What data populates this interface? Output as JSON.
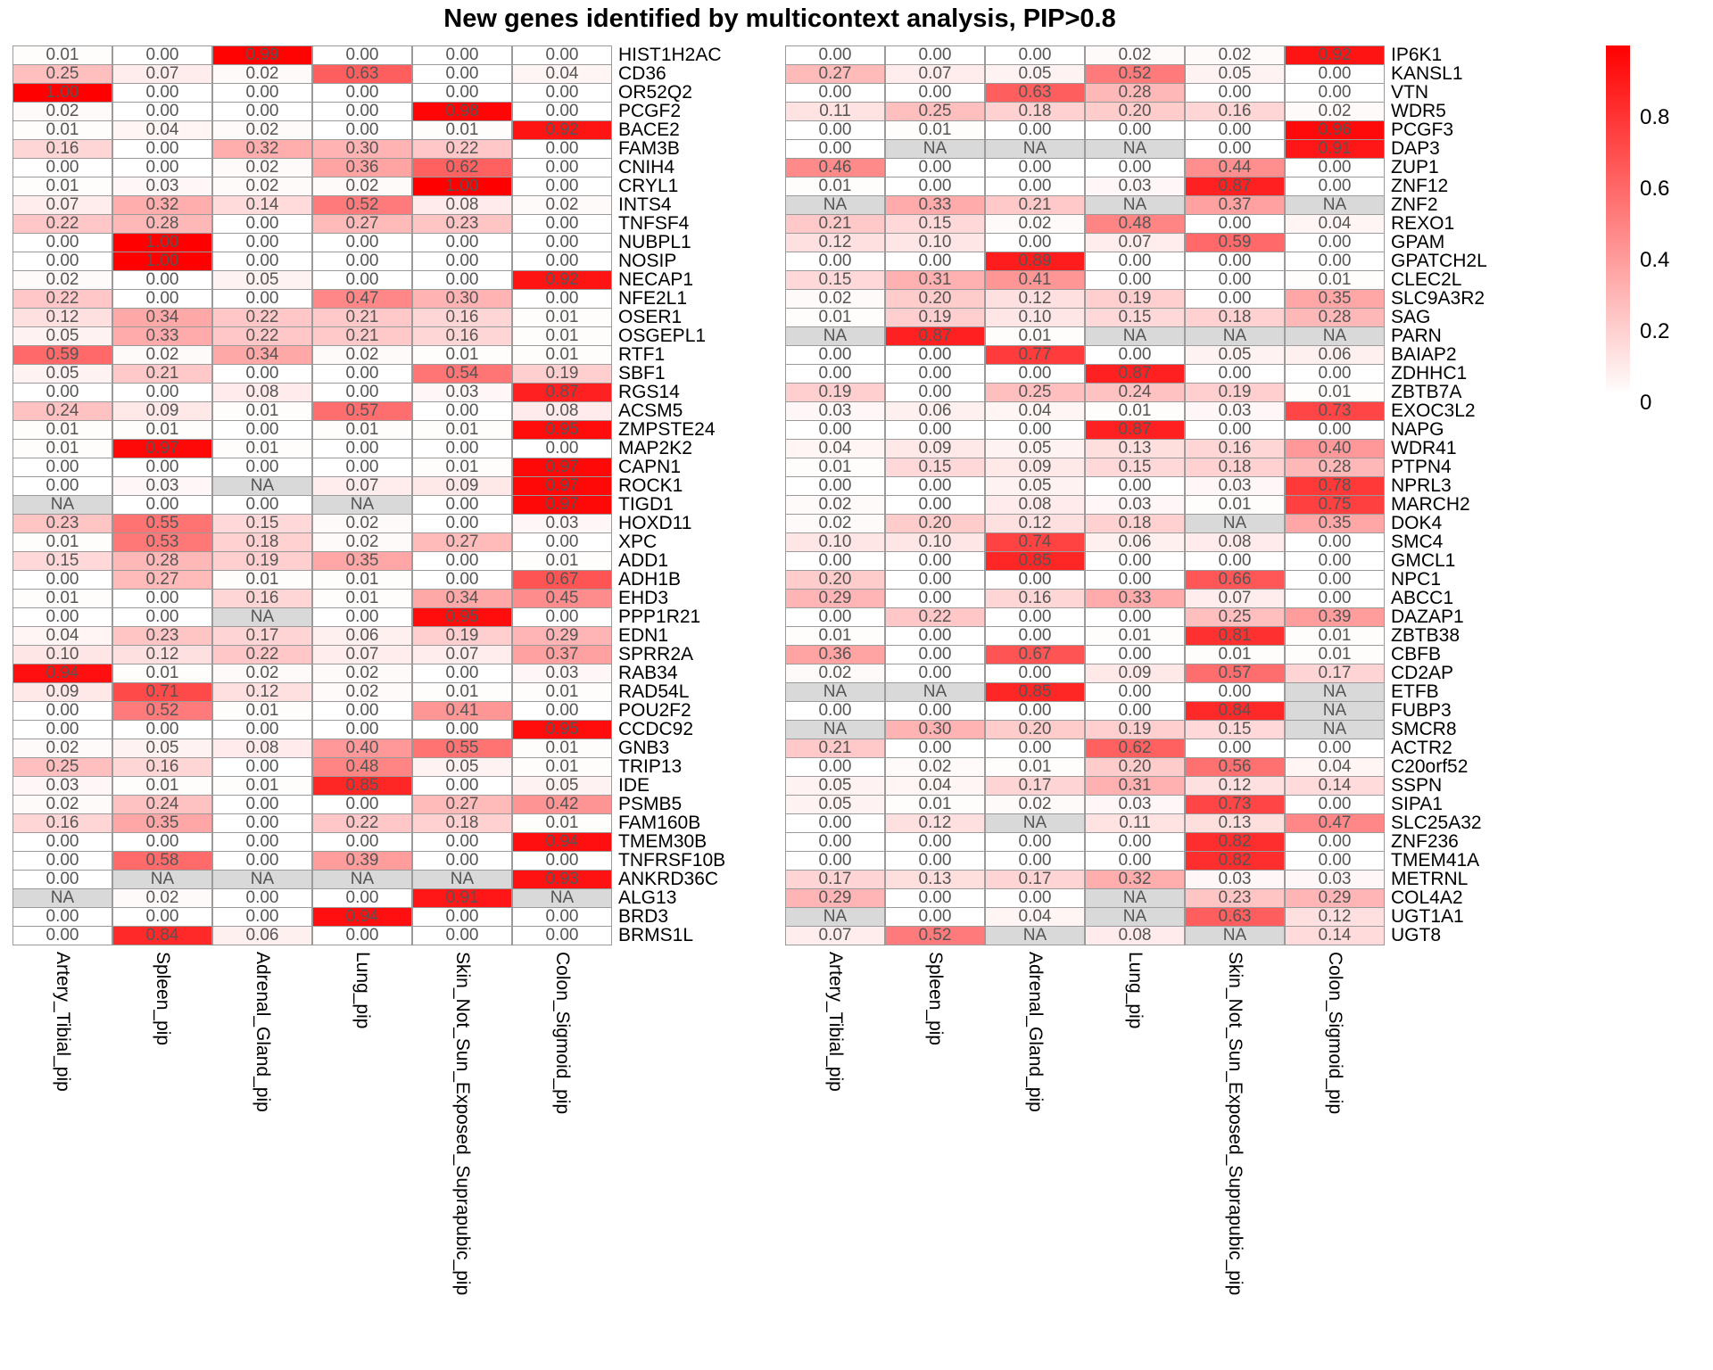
{
  "chart_data": {
    "type": "heatmap",
    "title": "New genes identified by multicontext analysis, PIP>0.8",
    "columns": [
      "Artery_Tibial_pip",
      "Spleen_pip",
      "Adrenal_Gland_pip",
      "Lung_pip",
      "Skin_Not_Sun_Exposed_Suprapubic_pip",
      "Colon_Sigmoid_pip"
    ],
    "rows": [
      "HIST1H2AC",
      "CD36",
      "OR52Q2",
      "PCGF2",
      "BACE2",
      "FAM3B",
      "CNIH4",
      "CRYL1",
      "INTS4",
      "TNFSF4",
      "NUBPL1",
      "NOSIP",
      "NECAP1",
      "NFE2L1",
      "OSER1",
      "OSGEPL1",
      "RTF1",
      "SBF1",
      "RGS14",
      "ACSM5",
      "ZMPSTE24",
      "MAP2K2",
      "CAPN1",
      "ROCK1",
      "TIGD1",
      "HOXD11",
      "XPC",
      "ADD1",
      "ADH1B",
      "EHD3",
      "PPP1R21",
      "EDN1",
      "SPRR2A",
      "RAB34",
      "RAD54L",
      "POU2F2",
      "CCDC92",
      "GNB3",
      "TRIP13",
      "IDE",
      "PSMB5",
      "FAM160B",
      "TMEM30B",
      "TNFRSF10B",
      "ANKRD36C",
      "ALG13",
      "BRD3",
      "BRMS1L",
      "IP6K1",
      "KANSL1",
      "VTN",
      "WDR5",
      "PCGF3",
      "DAP3",
      "ZUP1",
      "ZNF12",
      "ZNF2",
      "REXO1",
      "GPAM",
      "GPATCH2L",
      "CLEC2L",
      "SLC9A3R2",
      "SAG",
      "PARN",
      "BAIAP2",
      "ZDHHC1",
      "ZBTB7A",
      "EXOC3L2",
      "NAPG",
      "WDR41",
      "PTPN4",
      "NPRL3",
      "MARCH2",
      "DOK4",
      "SMC4",
      "GMCL1",
      "NPC1",
      "ABCC1",
      "DAZAP1",
      "ZBTB38",
      "CBFB",
      "CD2AP",
      "ETFB",
      "FUBP3",
      "SMCR8",
      "ACTR2",
      "C20orf52",
      "SSPN",
      "SIPA1",
      "SLC25A32",
      "ZNF236",
      "TMEM41A",
      "METRNL",
      "COL4A2",
      "UGT1A1",
      "UGT8"
    ],
    "values": [
      [
        "0.01",
        "0.00",
        "0.99",
        "0.00",
        "0.00",
        "0.00"
      ],
      [
        "0.25",
        "0.07",
        "0.02",
        "0.63",
        "0.00",
        "0.04"
      ],
      [
        "1.00",
        "0.00",
        "0.00",
        "0.00",
        "0.00",
        "0.00"
      ],
      [
        "0.02",
        "0.00",
        "0.00",
        "0.00",
        "0.98",
        "0.00"
      ],
      [
        "0.01",
        "0.04",
        "0.02",
        "0.00",
        "0.01",
        "0.92"
      ],
      [
        "0.16",
        "0.00",
        "0.32",
        "0.30",
        "0.22",
        "0.00"
      ],
      [
        "0.00",
        "0.00",
        "0.02",
        "0.36",
        "0.62",
        "0.00"
      ],
      [
        "0.01",
        "0.03",
        "0.02",
        "0.02",
        "1.00",
        "0.00"
      ],
      [
        "0.07",
        "0.32",
        "0.14",
        "0.52",
        "0.08",
        "0.02"
      ],
      [
        "0.22",
        "0.28",
        "0.00",
        "0.27",
        "0.23",
        "0.00"
      ],
      [
        "0.00",
        "1.00",
        "0.00",
        "0.00",
        "0.00",
        "0.00"
      ],
      [
        "0.00",
        "1.00",
        "0.00",
        "0.00",
        "0.00",
        "0.00"
      ],
      [
        "0.02",
        "0.00",
        "0.05",
        "0.00",
        "0.00",
        "0.92"
      ],
      [
        "0.22",
        "0.00",
        "0.00",
        "0.47",
        "0.30",
        "0.00"
      ],
      [
        "0.12",
        "0.34",
        "0.22",
        "0.21",
        "0.16",
        "0.01"
      ],
      [
        "0.05",
        "0.33",
        "0.22",
        "0.21",
        "0.16",
        "0.01"
      ],
      [
        "0.59",
        "0.02",
        "0.34",
        "0.02",
        "0.01",
        "0.01"
      ],
      [
        "0.05",
        "0.21",
        "0.00",
        "0.00",
        "0.54",
        "0.19"
      ],
      [
        "0.00",
        "0.00",
        "0.08",
        "0.00",
        "0.03",
        "0.87"
      ],
      [
        "0.24",
        "0.09",
        "0.01",
        "0.57",
        "0.00",
        "0.08"
      ],
      [
        "0.01",
        "0.01",
        "0.00",
        "0.01",
        "0.01",
        "0.95"
      ],
      [
        "0.01",
        "0.97",
        "0.01",
        "0.00",
        "0.00",
        "0.00"
      ],
      [
        "0.00",
        "0.00",
        "0.00",
        "0.00",
        "0.01",
        "0.97"
      ],
      [
        "0.00",
        "0.03",
        "NA",
        "0.07",
        "0.09",
        "0.97"
      ],
      [
        "NA",
        "0.00",
        "0.00",
        "NA",
        "0.00",
        "0.97"
      ],
      [
        "0.23",
        "0.55",
        "0.15",
        "0.02",
        "0.00",
        "0.03"
      ],
      [
        "0.01",
        "0.53",
        "0.18",
        "0.02",
        "0.27",
        "0.00"
      ],
      [
        "0.15",
        "0.28",
        "0.19",
        "0.35",
        "0.00",
        "0.01"
      ],
      [
        "0.00",
        "0.27",
        "0.01",
        "0.01",
        "0.00",
        "0.67"
      ],
      [
        "0.01",
        "0.00",
        "0.16",
        "0.01",
        "0.34",
        "0.45"
      ],
      [
        "0.00",
        "0.00",
        "NA",
        "0.00",
        "0.95",
        "0.00"
      ],
      [
        "0.04",
        "0.23",
        "0.17",
        "0.06",
        "0.19",
        "0.29"
      ],
      [
        "0.10",
        "0.12",
        "0.22",
        "0.07",
        "0.07",
        "0.37"
      ],
      [
        "0.94",
        "0.01",
        "0.02",
        "0.02",
        "0.00",
        "0.03"
      ],
      [
        "0.09",
        "0.71",
        "0.12",
        "0.02",
        "0.01",
        "0.01"
      ],
      [
        "0.00",
        "0.52",
        "0.01",
        "0.00",
        "0.41",
        "0.00"
      ],
      [
        "0.00",
        "0.00",
        "0.00",
        "0.00",
        "0.00",
        "0.95"
      ],
      [
        "0.02",
        "0.05",
        "0.08",
        "0.40",
        "0.55",
        "0.01"
      ],
      [
        "0.25",
        "0.16",
        "0.00",
        "0.48",
        "0.05",
        "0.01"
      ],
      [
        "0.03",
        "0.01",
        "0.01",
        "0.85",
        "0.00",
        "0.05"
      ],
      [
        "0.02",
        "0.24",
        "0.00",
        "0.00",
        "0.27",
        "0.42"
      ],
      [
        "0.16",
        "0.35",
        "0.00",
        "0.22",
        "0.18",
        "0.01"
      ],
      [
        "0.00",
        "0.00",
        "0.00",
        "0.00",
        "0.00",
        "0.94"
      ],
      [
        "0.00",
        "0.58",
        "0.00",
        "0.39",
        "0.00",
        "0.00"
      ],
      [
        "0.00",
        "NA",
        "NA",
        "NA",
        "NA",
        "0.93"
      ],
      [
        "NA",
        "0.02",
        "0.00",
        "0.00",
        "0.91",
        "NA"
      ],
      [
        "0.00",
        "0.00",
        "0.00",
        "0.94",
        "0.00",
        "0.00"
      ],
      [
        "0.00",
        "0.84",
        "0.06",
        "0.00",
        "0.00",
        "0.00"
      ],
      [
        "0.00",
        "0.00",
        "0.00",
        "0.02",
        "0.02",
        "0.92"
      ],
      [
        "0.27",
        "0.07",
        "0.05",
        "0.52",
        "0.05",
        "0.00"
      ],
      [
        "0.00",
        "0.00",
        "0.63",
        "0.28",
        "0.00",
        "0.00"
      ],
      [
        "0.11",
        "0.25",
        "0.18",
        "0.20",
        "0.16",
        "0.02"
      ],
      [
        "0.00",
        "0.01",
        "0.00",
        "0.00",
        "0.00",
        "0.96"
      ],
      [
        "0.00",
        "NA",
        "NA",
        "NA",
        "0.00",
        "0.91"
      ],
      [
        "0.46",
        "0.00",
        "0.00",
        "0.00",
        "0.44",
        "0.00"
      ],
      [
        "0.01",
        "0.00",
        "0.00",
        "0.03",
        "0.87",
        "0.00"
      ],
      [
        "NA",
        "0.33",
        "0.21",
        "NA",
        "0.37",
        "NA"
      ],
      [
        "0.21",
        "0.15",
        "0.02",
        "0.48",
        "0.00",
        "0.04"
      ],
      [
        "0.12",
        "0.10",
        "0.00",
        "0.07",
        "0.59",
        "0.00"
      ],
      [
        "0.00",
        "0.00",
        "0.89",
        "0.00",
        "0.00",
        "0.00"
      ],
      [
        "0.15",
        "0.31",
        "0.41",
        "0.00",
        "0.00",
        "0.01"
      ],
      [
        "0.02",
        "0.20",
        "0.12",
        "0.19",
        "0.00",
        "0.35"
      ],
      [
        "0.01",
        "0.19",
        "0.10",
        "0.15",
        "0.18",
        "0.28"
      ],
      [
        "NA",
        "0.87",
        "0.01",
        "NA",
        "NA",
        "NA"
      ],
      [
        "0.00",
        "0.00",
        "0.77",
        "0.00",
        "0.05",
        "0.06"
      ],
      [
        "0.00",
        "0.00",
        "0.00",
        "0.87",
        "0.00",
        "0.00"
      ],
      [
        "0.19",
        "0.00",
        "0.25",
        "0.24",
        "0.19",
        "0.01"
      ],
      [
        "0.03",
        "0.06",
        "0.04",
        "0.01",
        "0.03",
        "0.73"
      ],
      [
        "0.00",
        "0.00",
        "0.00",
        "0.87",
        "0.00",
        "0.00"
      ],
      [
        "0.04",
        "0.09",
        "0.05",
        "0.13",
        "0.16",
        "0.40"
      ],
      [
        "0.01",
        "0.15",
        "0.09",
        "0.15",
        "0.18",
        "0.28"
      ],
      [
        "0.00",
        "0.00",
        "0.05",
        "0.00",
        "0.03",
        "0.78"
      ],
      [
        "0.02",
        "0.00",
        "0.08",
        "0.03",
        "0.01",
        "0.75"
      ],
      [
        "0.02",
        "0.20",
        "0.12",
        "0.18",
        "NA",
        "0.35"
      ],
      [
        "0.10",
        "0.10",
        "0.74",
        "0.06",
        "0.08",
        "0.00"
      ],
      [
        "0.00",
        "0.00",
        "0.85",
        "0.00",
        "0.00",
        "0.00"
      ],
      [
        "0.20",
        "0.00",
        "0.00",
        "0.00",
        "0.66",
        "0.00"
      ],
      [
        "0.29",
        "0.00",
        "0.16",
        "0.33",
        "0.07",
        "0.00"
      ],
      [
        "0.00",
        "0.22",
        "0.00",
        "0.00",
        "0.25",
        "0.39"
      ],
      [
        "0.01",
        "0.00",
        "0.00",
        "0.01",
        "0.81",
        "0.01"
      ],
      [
        "0.36",
        "0.00",
        "0.67",
        "0.00",
        "0.01",
        "0.01"
      ],
      [
        "0.02",
        "0.00",
        "0.00",
        "0.09",
        "0.57",
        "0.17"
      ],
      [
        "NA",
        "NA",
        "0.85",
        "0.00",
        "0.00",
        "NA"
      ],
      [
        "0.00",
        "0.00",
        "0.00",
        "0.00",
        "0.84",
        "NA"
      ],
      [
        "NA",
        "0.30",
        "0.20",
        "0.19",
        "0.15",
        "NA"
      ],
      [
        "0.21",
        "0.00",
        "0.00",
        "0.62",
        "0.00",
        "0.00"
      ],
      [
        "0.00",
        "0.02",
        "0.01",
        "0.20",
        "0.56",
        "0.04"
      ],
      [
        "0.05",
        "0.04",
        "0.17",
        "0.31",
        "0.12",
        "0.14"
      ],
      [
        "0.05",
        "0.01",
        "0.02",
        "0.03",
        "0.73",
        "0.00"
      ],
      [
        "0.00",
        "0.12",
        "NA",
        "0.11",
        "0.13",
        "0.47"
      ],
      [
        "0.00",
        "0.00",
        "0.00",
        "0.00",
        "0.82",
        "0.00"
      ],
      [
        "0.00",
        "0.00",
        "0.00",
        "0.00",
        "0.82",
        "0.00"
      ],
      [
        "0.17",
        "0.13",
        "0.17",
        "0.32",
        "0.03",
        "0.03"
      ],
      [
        "0.29",
        "0.00",
        "0.00",
        "NA",
        "0.23",
        "0.29"
      ],
      [
        "NA",
        "0.00",
        "0.04",
        "NA",
        "0.63",
        "0.12"
      ],
      [
        "0.07",
        "0.52",
        "NA",
        "0.08",
        "NA",
        "0.14"
      ]
    ],
    "color_scale": {
      "low": "#ffffff",
      "high": "#ff0000",
      "na": "#d9d9d9",
      "range": [
        0,
        1
      ]
    },
    "legend": {
      "position": "right",
      "ticks": [
        "0",
        "0.2",
        "0.4",
        "0.6",
        "0.8"
      ]
    }
  }
}
